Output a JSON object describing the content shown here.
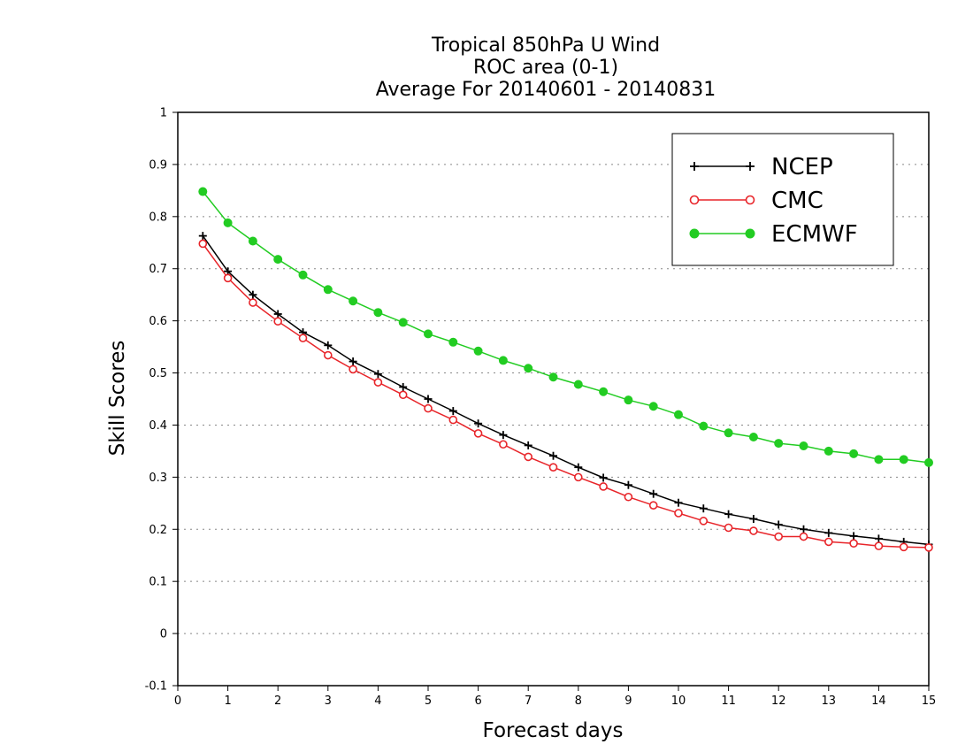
{
  "chart_data": {
    "type": "line",
    "title_lines": [
      "Tropical 850hPa U Wind",
      "ROC area (0-1)",
      "Average For 20140601 - 20140831"
    ],
    "xlabel": "Forecast days",
    "ylabel": "Skill Scores",
    "xlim": [
      0,
      15
    ],
    "ylim": [
      -0.1,
      1
    ],
    "x_ticks": [
      "0",
      "1",
      "2",
      "3",
      "4",
      "5",
      "6",
      "7",
      "8",
      "9",
      "10",
      "11",
      "12",
      "13",
      "14",
      "15"
    ],
    "y_ticks": [
      "-0.1",
      "0",
      "0.1",
      "0.2",
      "0.3",
      "0.4",
      "0.5",
      "0.6",
      "0.7",
      "0.8",
      "0.9",
      "1"
    ],
    "grid": "horizontal-dotted",
    "legend_position": "top-right",
    "x": [
      0.5,
      1,
      1.5,
      2,
      2.5,
      3,
      3.5,
      4,
      4.5,
      5,
      5.5,
      6,
      6.5,
      7,
      7.5,
      8,
      8.5,
      9,
      9.5,
      10,
      10.5,
      11,
      11.5,
      12,
      12.5,
      13,
      13.5,
      14,
      14.5,
      15
    ],
    "series": [
      {
        "name": "NCEP",
        "color": "#000000",
        "marker": "plus",
        "values": [
          0.763,
          0.695,
          0.65,
          0.613,
          0.578,
          0.553,
          0.522,
          0.498,
          0.473,
          0.45,
          0.427,
          0.403,
          0.381,
          0.361,
          0.341,
          0.319,
          0.299,
          0.285,
          0.268,
          0.251,
          0.24,
          0.229,
          0.22,
          0.209,
          0.2,
          0.193,
          0.187,
          0.182,
          0.176,
          0.171
        ]
      },
      {
        "name": "CMC",
        "color": "#e8252a",
        "marker": "open-circle",
        "values": [
          0.748,
          0.682,
          0.635,
          0.599,
          0.567,
          0.534,
          0.507,
          0.482,
          0.458,
          0.432,
          0.41,
          0.384,
          0.363,
          0.339,
          0.319,
          0.3,
          0.282,
          0.262,
          0.246,
          0.231,
          0.216,
          0.203,
          0.197,
          0.186,
          0.186,
          0.176,
          0.173,
          0.168,
          0.166,
          0.165
        ]
      },
      {
        "name": "ECMWF",
        "color": "#22cc22",
        "marker": "filled-circle",
        "values": [
          0.848,
          0.788,
          0.753,
          0.718,
          0.688,
          0.66,
          0.638,
          0.616,
          0.597,
          0.575,
          0.559,
          0.542,
          0.524,
          0.509,
          0.492,
          0.478,
          0.464,
          0.448,
          0.436,
          0.42,
          0.398,
          0.385,
          0.377,
          0.365,
          0.36,
          0.35,
          0.345,
          0.334,
          0.334,
          0.328
        ]
      }
    ]
  }
}
